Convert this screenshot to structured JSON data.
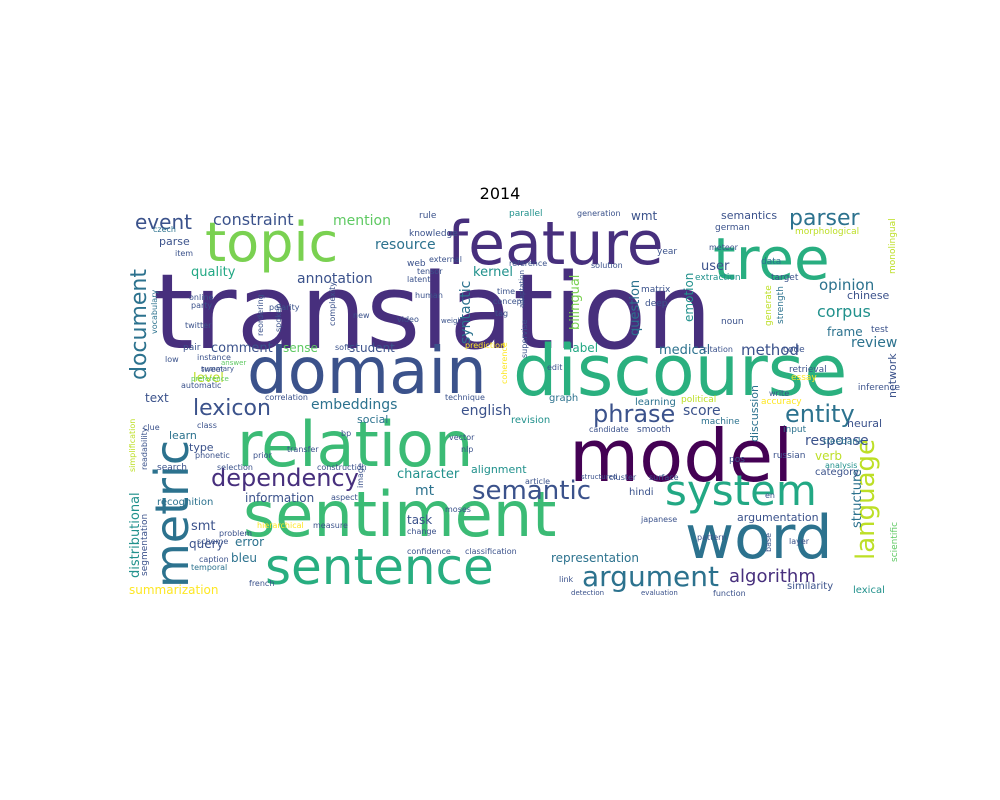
{
  "title": "2014",
  "words": {
    "translation": "translation",
    "feature": "feature",
    "topic": "topic",
    "tree": "tree",
    "domain": "domain",
    "discourse": "discourse",
    "relation": "relation",
    "model": "model",
    "sentiment": "sentiment",
    "metric": "metric",
    "sentence": "sentence",
    "word": "word",
    "system": "system",
    "dependency": "dependency",
    "argument": "argument",
    "semantic": "semantic",
    "language": "language",
    "entity": "entity",
    "phrase": "phrase",
    "lexicon": "lexicon",
    "document": "document",
    "parser": "parser",
    "event": "event",
    "constraint": "constraint",
    "mention": "mention",
    "algorithm": "algorithm",
    "corpus": "corpus",
    "opinion": "opinion",
    "method": "method",
    "annotation": "annotation",
    "embeddings": "embeddings",
    "english": "english",
    "quality": "quality",
    "resource": "resource",
    "syntactic": "syntactic",
    "kernel": "kernel",
    "user": "user",
    "wmt": "wmt",
    "semantics": "semantics",
    "question": "question",
    "bilingual": "bilingual",
    "emotion": "emotion",
    "mt": "mt",
    "character": "character",
    "structure": "structure",
    "representation": "representation",
    "task": "task",
    "response": "response",
    "review": "review",
    "score": "score",
    "label": "label",
    "medical": "medical",
    "level": "level",
    "comment": "comment",
    "sense": "sense",
    "student": "student",
    "frame": "frame",
    "network": "network",
    "chinese": "chinese",
    "distributional": "distributional",
    "smt": "smt",
    "error": "error",
    "query": "query",
    "summarization": "summarization",
    "segmentation": "segmentation",
    "argumentation": "argumentation",
    "information": "information",
    "alignment": "alignment",
    "verb": "verb",
    "neural": "neural",
    "bleu": "bleu",
    "text": "text",
    "learn": "learn",
    "type": "type",
    "parse": "parse",
    "social": "social",
    "discussion": "discussion",
    "category": "category",
    "similarity": "similarity",
    "lexical": "lexical",
    "recognition": "recognition",
    "hindi": "hindi",
    "graph": "graph",
    "revision": "revision",
    "learning": "learning",
    "political": "political",
    "accuracy": "accuracy",
    "smooth": "smooth",
    "machine": "machine",
    "input": "input",
    "russian": "russian",
    "treebank": "treebank",
    "pos": "pos",
    "analysis": "analysis",
    "scientific": "scientific",
    "test": "test",
    "inference": "inference",
    "retrieval": "retrieval",
    "essay": "essay",
    "code": "code",
    "target": "target",
    "strength": "strength",
    "generate": "generate",
    "noun": "noun",
    "deep": "deep",
    "matrix": "matrix",
    "extraction": "extraction",
    "meteor": "meteor",
    "data": "data",
    "german": "german",
    "year": "year",
    "solution": "solution",
    "generation": "generation",
    "morphological": "morphological",
    "monolingual": "monolingual",
    "rule": "rule",
    "czech": "czech",
    "item": "item",
    "knowledge": "knowledge",
    "external": "external",
    "web": "web",
    "tensor": "tensor",
    "latent": "latent",
    "human": "human",
    "reference": "reference",
    "time": "time",
    "concept": "concept",
    "tag": "tag",
    "parallel": "parallel",
    "online": "online",
    "party": "party",
    "twitter": "twitter",
    "vocabulary": "vocabulary",
    "polarity": "polarity",
    "complexity": "complexity",
    "reordering": "reordering",
    "spoken": "spoken",
    "new": "new",
    "video": "video",
    "soft": "soft",
    "prediction": "prediction",
    "pair": "pair",
    "low": "low",
    "instance": "instance",
    "tweet": "tweet",
    "automatic": "automatic",
    "summary": "summary",
    "correlation": "correlation",
    "technique": "technique",
    "supervise": "supervise",
    "edit": "edit",
    "citation": "citation",
    "write": "write",
    "candidate": "candidate",
    "simplification": "simplification",
    "readability": "readability",
    "clue": "clue",
    "class": "class",
    "phonetic": "phonetic",
    "temporal": "temporal",
    "prior": "prior",
    "transfer": "transfer",
    "bp": "bp",
    "vector": "vector",
    "nlp": "nlp",
    "image": "image",
    "construction": "construction",
    "selection": "selection",
    "search": "search",
    "caption": "caption",
    "scheme": "scheme",
    "problem": "problem",
    "hierarchical": "hierarchical",
    "aspect": "aspect",
    "measure": "measure",
    "moses": "moses",
    "coherence": "coherence",
    "adaptation": "adaptation",
    "article": "article",
    "structured": "structured",
    "cluster": "cluster",
    "surface": "surface",
    "japanese": "japanese",
    "change": "change",
    "confidence": "confidence",
    "classification": "classification",
    "pattern": "pattern",
    "en": "en",
    "base": "base",
    "layer": "layer",
    "french": "french",
    "link": "link",
    "detection": "detection",
    "evaluation": "evaluation",
    "function": "function",
    "weight": "weight",
    "answer": "answer",
    "preference": "preference"
  },
  "colors": {
    "deep_purple": "#440154",
    "indigo": "#472f7d",
    "slate_blue": "#3b528b",
    "steel_blue": "#2c728e",
    "teal": "#21918c",
    "sea_green": "#28ae80",
    "green": "#5ec962",
    "lime": "#addc30",
    "yellow": "#fde725"
  }
}
